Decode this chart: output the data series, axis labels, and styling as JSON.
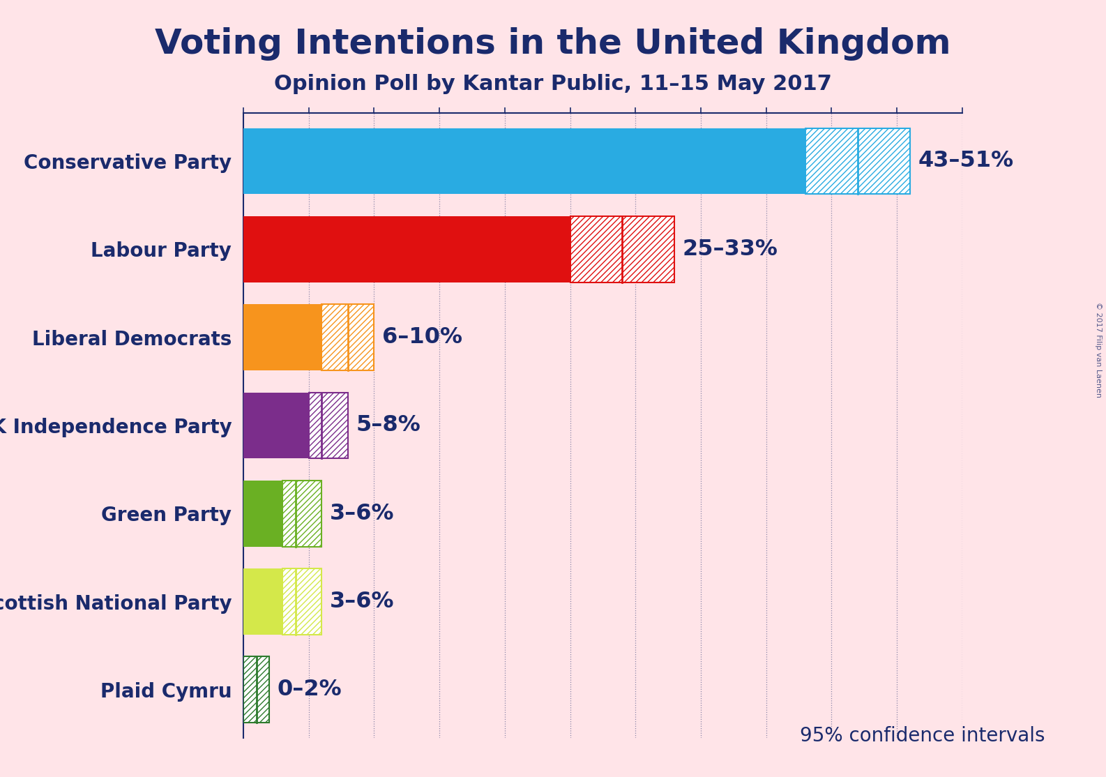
{
  "title": "Voting Intentions in the United Kingdom",
  "subtitle": "Opinion Poll by Kantar Public, 11–15 May 2017",
  "watermark": "© 2017 Filip van Laenen",
  "footnote": "95% confidence intervals",
  "background_color": "#FFE4E8",
  "title_color": "#1A2A6C",
  "parties": [
    "Conservative Party",
    "Labour Party",
    "Liberal Democrats",
    "UK Independence Party",
    "Green Party",
    "Scottish National Party",
    "Plaid Cymru"
  ],
  "low": [
    43,
    25,
    6,
    5,
    3,
    3,
    0
  ],
  "high": [
    51,
    33,
    10,
    8,
    6,
    6,
    2
  ],
  "median": [
    47,
    29,
    8,
    6,
    4,
    4,
    1
  ],
  "colors": [
    "#29ABE2",
    "#E01010",
    "#F7941D",
    "#7B2D8B",
    "#6AB023",
    "#D4E84A",
    "#2D7A2D"
  ],
  "labels": [
    "43–51%",
    "25–33%",
    "6–10%",
    "5–8%",
    "3–6%",
    "3–6%",
    "0–2%"
  ],
  "xlim": [
    0,
    55
  ],
  "xticks": [
    0,
    5,
    10,
    15,
    20,
    25,
    30,
    35,
    40,
    45,
    50,
    55
  ]
}
